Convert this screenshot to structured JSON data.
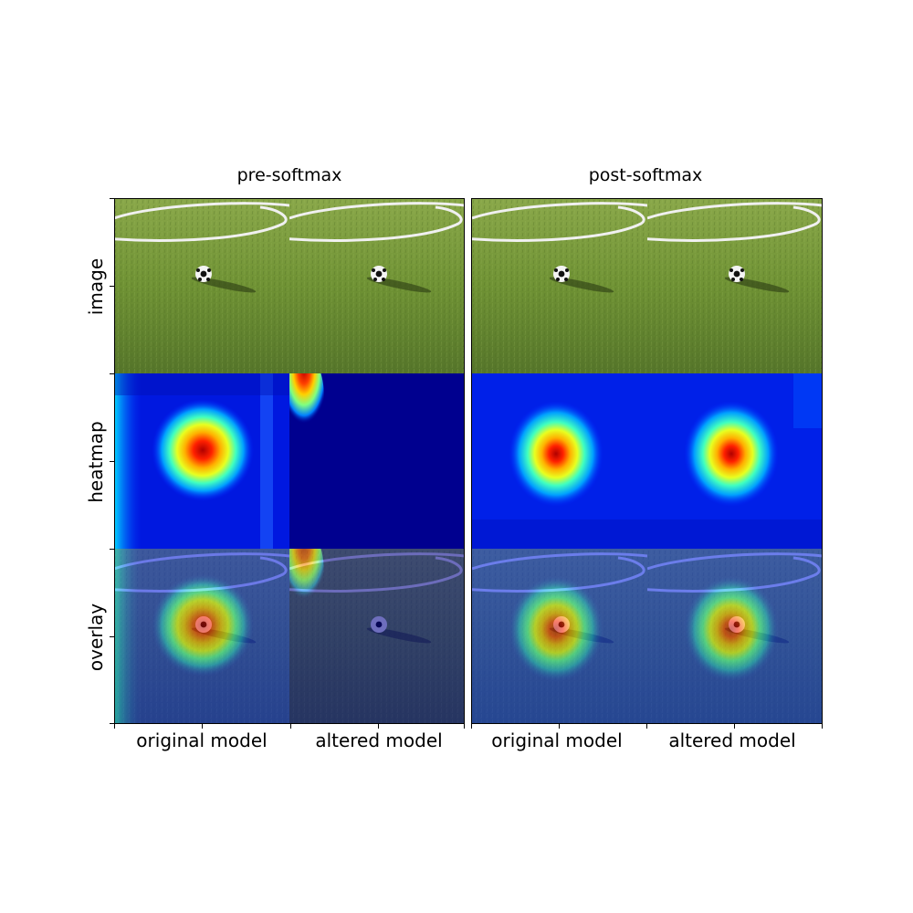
{
  "panels": [
    {
      "title": "pre-softmax"
    },
    {
      "title": "post-softmax"
    }
  ],
  "row_labels": [
    "image",
    "heatmap",
    "overlay"
  ],
  "col_labels": [
    "original model",
    "altered model",
    "original model",
    "altered model"
  ],
  "colors": {
    "grass_light": "#7a9a3a",
    "grass_dark": "#5e7d2a",
    "heat_low": "#00008f",
    "heat_mid": "#00c8ff",
    "heat_high": "#c80000"
  }
}
